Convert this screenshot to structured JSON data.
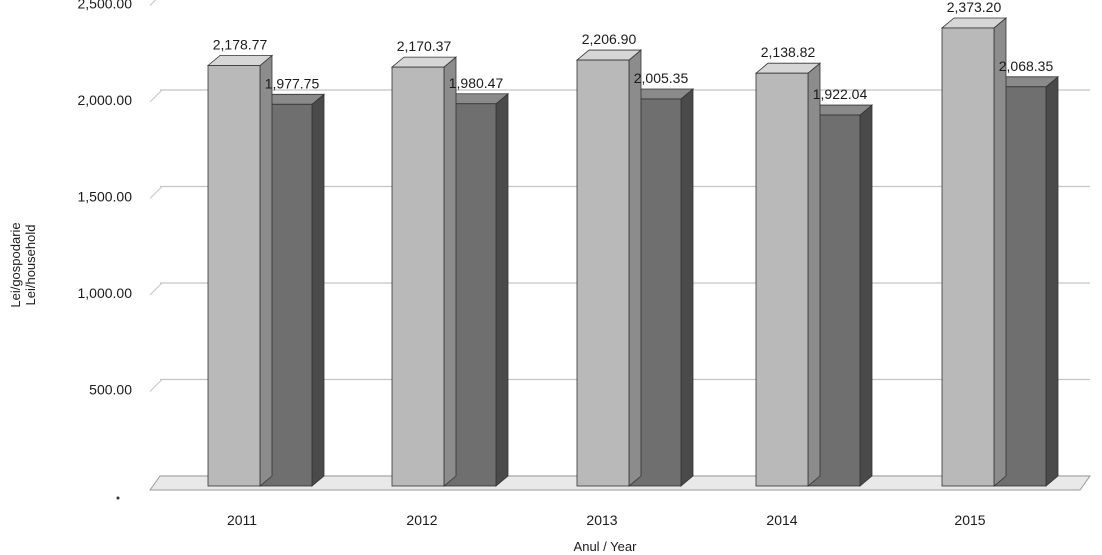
{
  "chart_data": {
    "type": "bar",
    "categories": [
      "2011",
      "2012",
      "2013",
      "2014",
      "2015"
    ],
    "series": [
      {
        "values": [
          2178.77,
          2170.37,
          2206.9,
          2138.82,
          2373.2
        ]
      },
      {
        "values": [
          1977.75,
          1980.47,
          2005.35,
          1922.04,
          2068.35
        ]
      }
    ],
    "data_labels": [
      [
        "2,178.77",
        "2,170.37",
        "2,206.90",
        "2,138.82",
        "2,373.20"
      ],
      [
        "1,977.75",
        "1,980.47",
        "2,005.35",
        "1,922.04",
        "2,068.35"
      ]
    ],
    "yticks": [
      {
        "value": 500,
        "label": "500.00"
      },
      {
        "value": 1000,
        "label": "1,000.00"
      },
      {
        "value": 1500,
        "label": "1,500.00"
      },
      {
        "value": 2000,
        "label": "2,000.00"
      },
      {
        "value": 2500,
        "label": "2,500.00"
      }
    ],
    "ylim": [
      0,
      2500
    ],
    "ylabel_line1": "Lei/gospodarie",
    "ylabel_line2": "Lei/household",
    "xlabel": "Anul / Year",
    "grid": true,
    "colors": {
      "series1_front": "#b9b9b9",
      "series1_side": "#8c8c8c",
      "series1_top": "#d6d6d6",
      "series2_front": "#6f6f6f",
      "series2_side": "#4a4a4a",
      "series2_top": "#8a8a8a",
      "grid": "#c4c4c4",
      "floor": "#9a9a9a"
    }
  }
}
